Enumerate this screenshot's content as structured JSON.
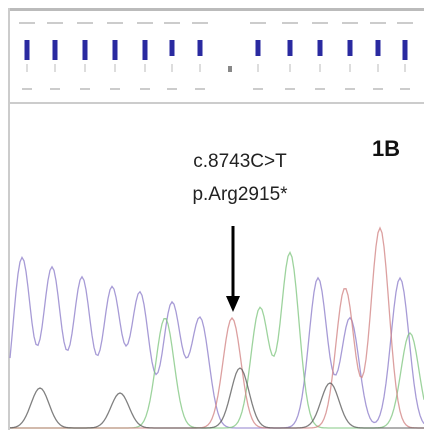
{
  "annotation": {
    "mutation": "c.8743C>T",
    "protein": "p.Arg2915*"
  },
  "panel_label": "1B"
}
